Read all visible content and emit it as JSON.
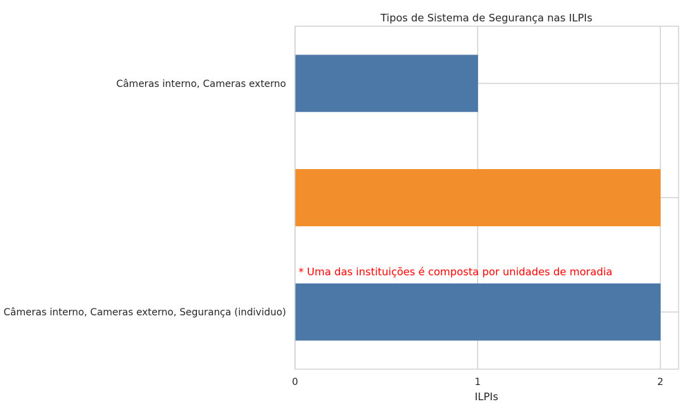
{
  "chart_data": {
    "type": "bar",
    "orientation": "horizontal",
    "title": "Tipos de Sistema de Segurança nas ILPIs",
    "xlabel": "ILPIs",
    "ylabel": "",
    "xlim": [
      0,
      2.1
    ],
    "xticks": [
      "0",
      "1",
      "2"
    ],
    "grid": true,
    "categories": [
      "Câmeras interno, Cameras externo, Segurança (individuo)",
      "",
      "Câmeras interno, Cameras externo"
    ],
    "values": [
      2,
      2,
      1
    ],
    "colors": [
      "#4c78a8",
      "#f28e2b",
      "#4c78a8"
    ],
    "annotation": {
      "text": "* Uma das instituições é composta por unidades de moradia",
      "color": "#ff0000"
    }
  }
}
